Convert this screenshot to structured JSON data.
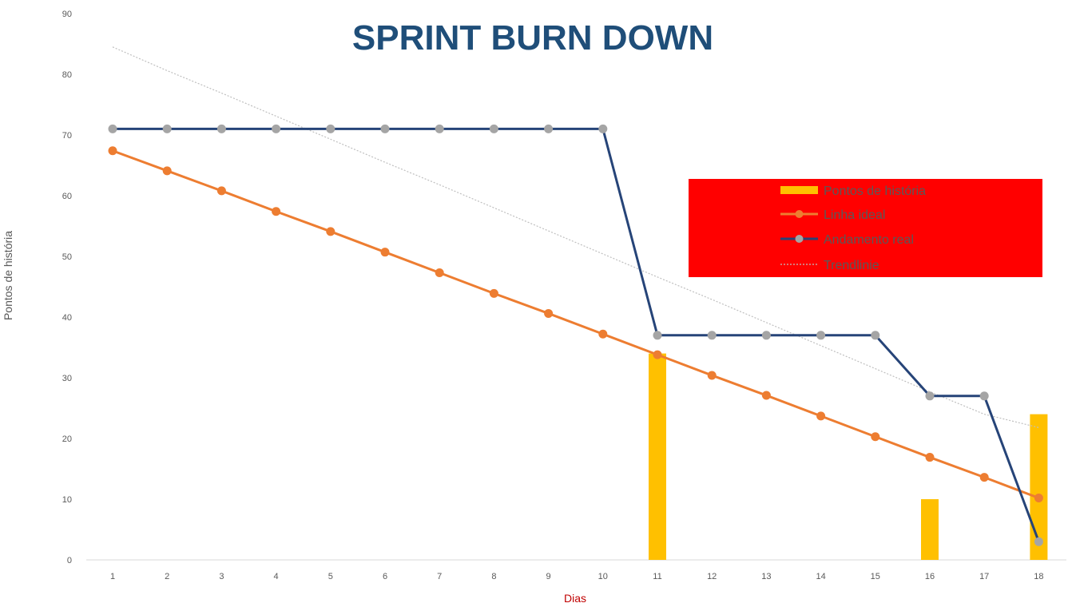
{
  "chart_data": {
    "type": "bar",
    "title": "SPRINT BURN DOWN",
    "xlabel": "Dias",
    "ylabel": "Pontos de história",
    "categories": [
      "1",
      "2",
      "3",
      "4",
      "5",
      "6",
      "7",
      "8",
      "9",
      "10",
      "11",
      "12",
      "13",
      "14",
      "15",
      "16",
      "17",
      "18"
    ],
    "ylim": [
      0,
      90
    ],
    "yticks": [
      0,
      10,
      20,
      30,
      40,
      50,
      60,
      70,
      80,
      90
    ],
    "grid": false,
    "legend_placement": "right",
    "series": [
      {
        "name": "Pontos de história",
        "type": "bar",
        "color": "#FFC000",
        "values": [
          0,
          0,
          0,
          0,
          0,
          0,
          0,
          0,
          0,
          0,
          34,
          0,
          0,
          0,
          0,
          10,
          0,
          24
        ]
      },
      {
        "name": "Linha ideal",
        "type": "line",
        "color": "#ED7D31",
        "marker_color": "#ED7D31",
        "values": [
          67.4,
          64.1,
          60.8,
          57.4,
          54.1,
          50.7,
          47.3,
          43.9,
          40.6,
          37.2,
          33.8,
          30.4,
          27.1,
          23.7,
          20.3,
          16.9,
          13.6,
          10.2
        ]
      },
      {
        "name": "Andamento real",
        "type": "line",
        "color": "#264478",
        "marker_color": "#A5A5A5",
        "values": [
          71,
          71,
          71,
          71,
          71,
          71,
          71,
          71,
          71,
          71,
          37,
          37,
          37,
          37,
          37,
          27,
          27,
          3
        ]
      },
      {
        "name": "Trendlinie",
        "type": "trendline",
        "color": "#BFBFBF",
        "values": [
          84.5,
          80.6,
          76.9,
          73.1,
          69.3,
          65.5,
          61.8,
          58.0,
          54.2,
          50.4,
          46.6,
          42.9,
          39.1,
          35.3,
          31.5,
          27.7,
          24.0,
          21.8
        ]
      }
    ],
    "colors": {
      "title": "#1F4E79",
      "xlabel": "#C00000",
      "ylabel": "#595959",
      "legend_background": "#FF0000",
      "legend_text": "#595959",
      "axis_line": "#D9D9D9"
    }
  }
}
